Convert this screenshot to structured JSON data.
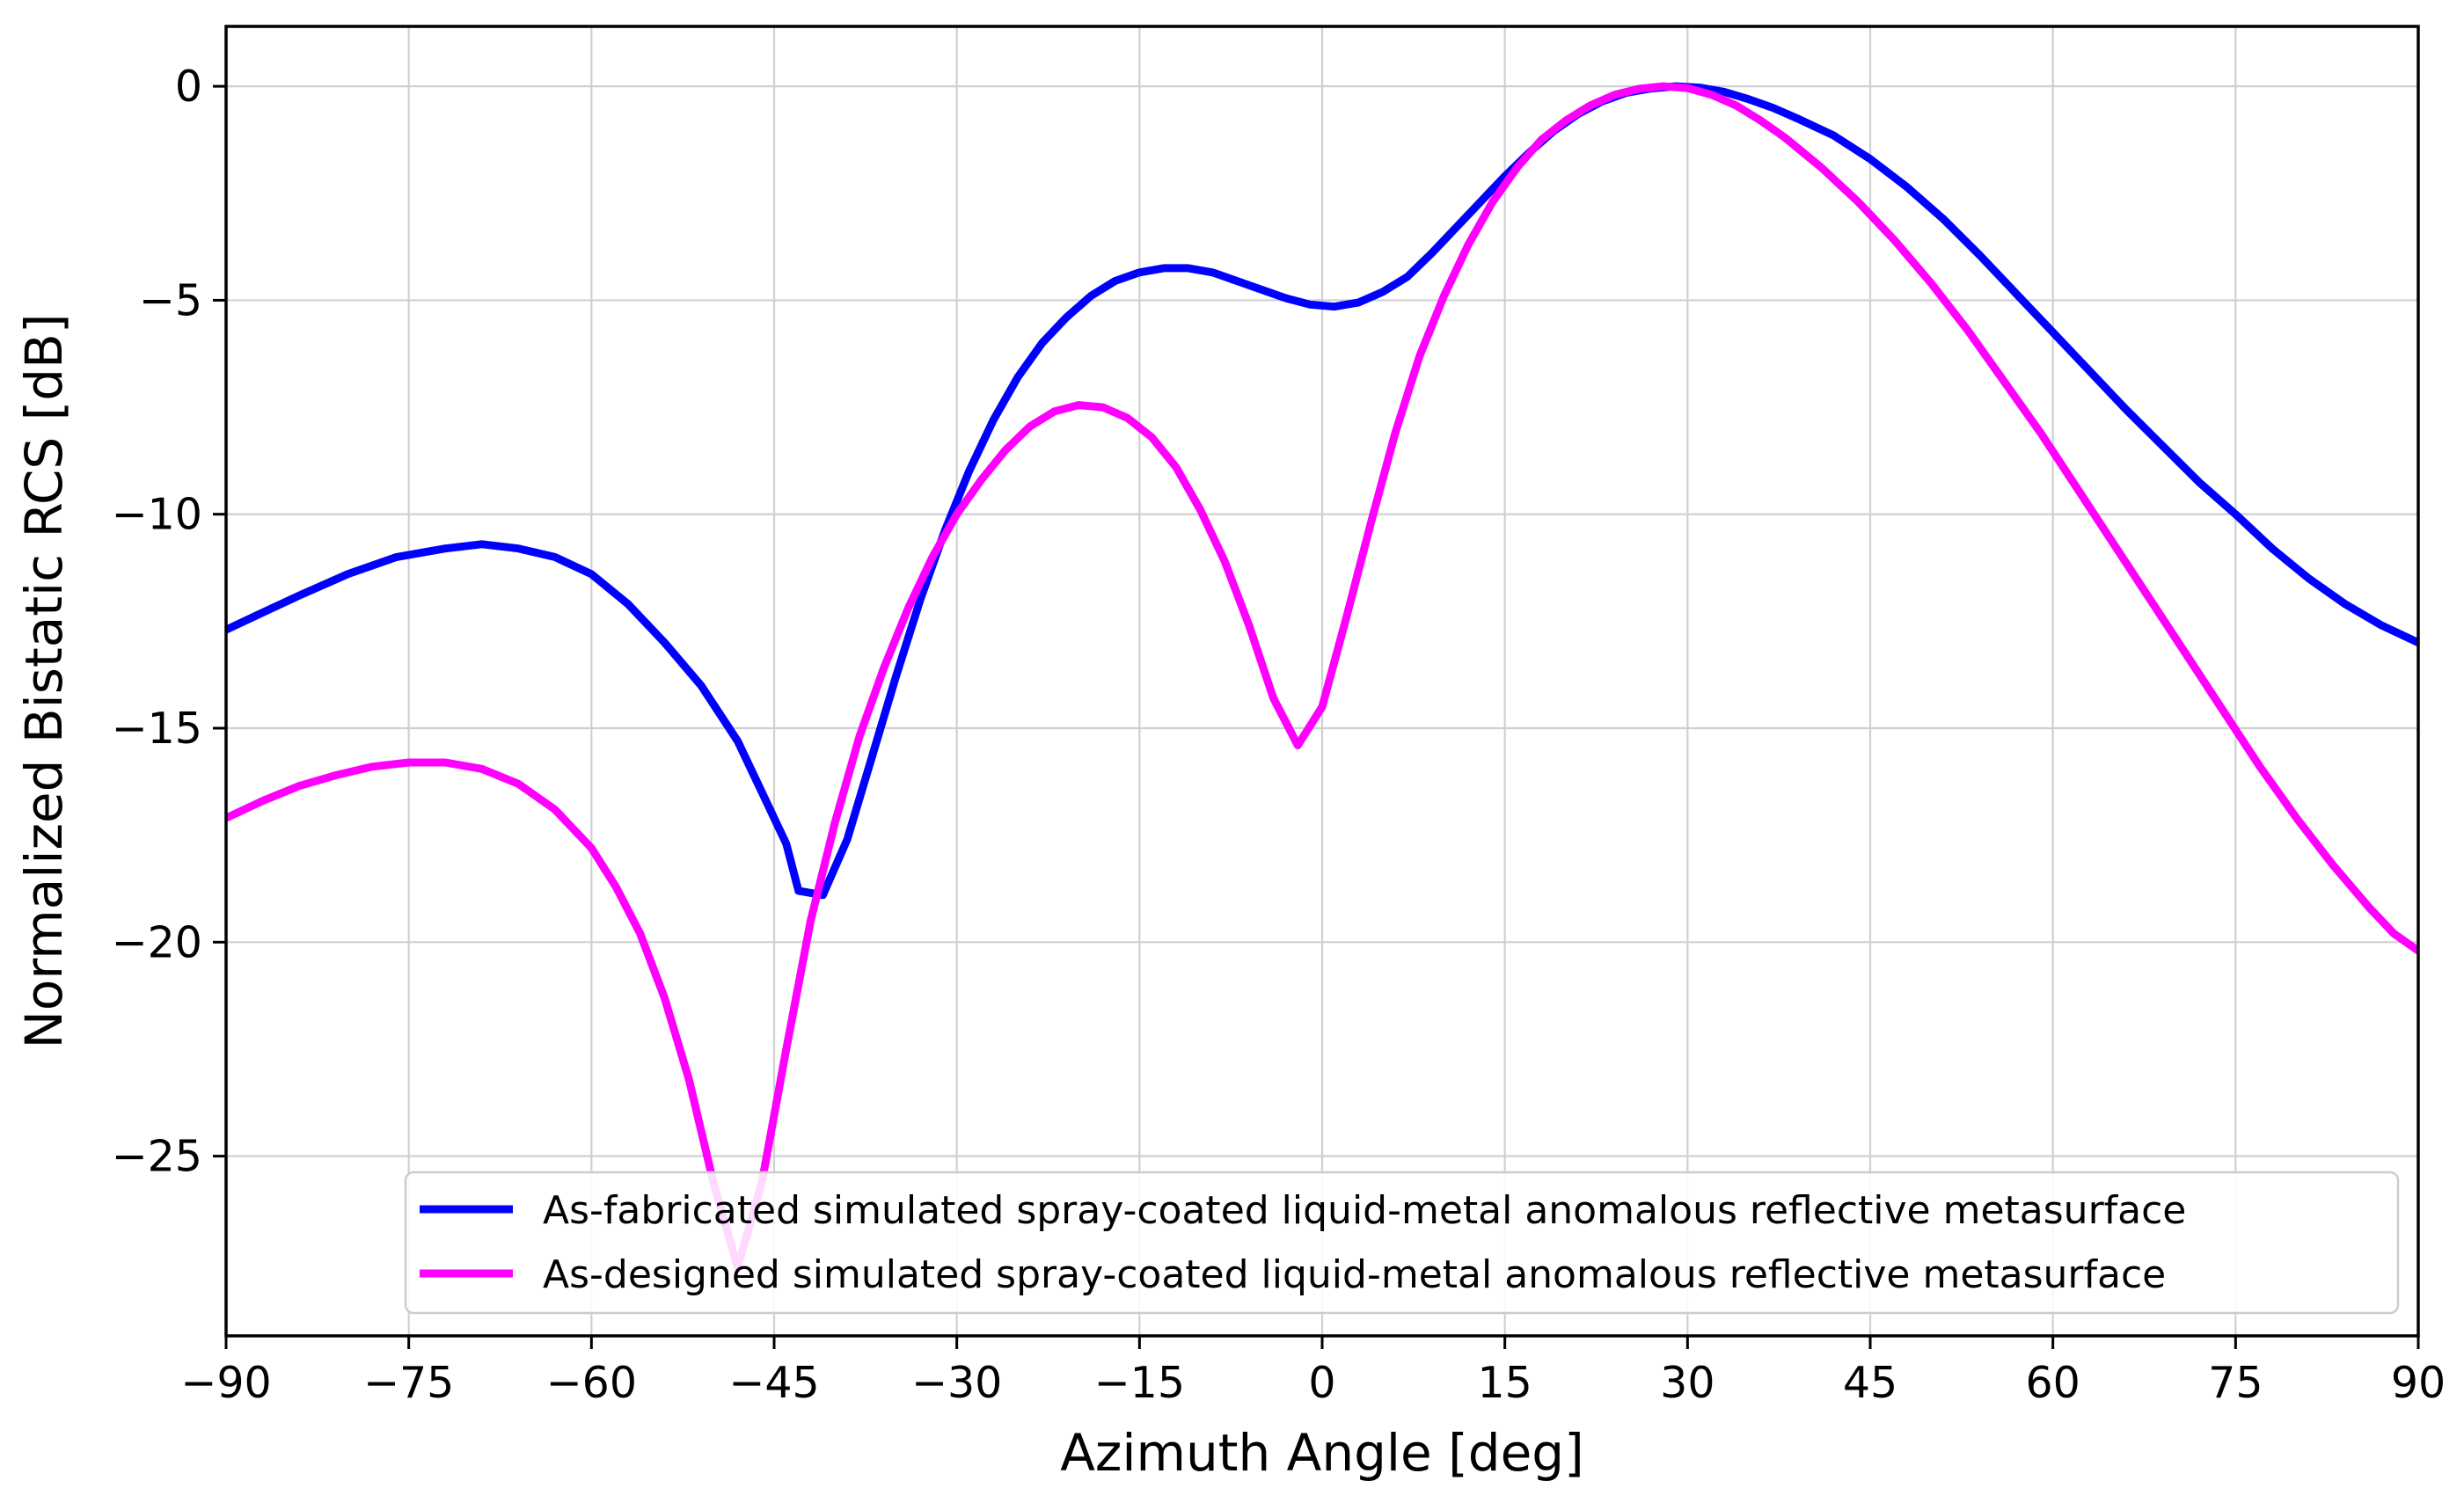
{
  "chart_data": {
    "type": "line",
    "title": "",
    "xlabel": "Azimuth Angle [deg]",
    "ylabel": "Normalized Bistatic RCS [dB]",
    "xlim": [
      -90,
      90
    ],
    "ylim": [
      -29.2,
      1.4
    ],
    "xticks": [
      -90,
      -75,
      -60,
      -45,
      -30,
      -15,
      0,
      15,
      30,
      45,
      60,
      75,
      90
    ],
    "yticks": [
      0,
      -5,
      -10,
      -15,
      -20,
      -25
    ],
    "grid": true,
    "legend_position": "lower-right",
    "series": [
      {
        "name": "As-fabricated simulated spray-coated liquid-metal anomalous reflective metasurface",
        "color": "#0000ff",
        "points": [
          [
            -90,
            -12.7
          ],
          [
            -87,
            -12.3
          ],
          [
            -84,
            -11.9
          ],
          [
            -80,
            -11.4
          ],
          [
            -76,
            -11.0
          ],
          [
            -72,
            -10.8
          ],
          [
            -69,
            -10.7
          ],
          [
            -66,
            -10.8
          ],
          [
            -63,
            -11.0
          ],
          [
            -60,
            -11.4
          ],
          [
            -57,
            -12.1
          ],
          [
            -54,
            -13.0
          ],
          [
            -51,
            -14.0
          ],
          [
            -48,
            -15.3
          ],
          [
            -46,
            -16.5
          ],
          [
            -44,
            -17.7
          ],
          [
            -43,
            -18.8
          ],
          [
            -41,
            -18.9
          ],
          [
            -39,
            -17.6
          ],
          [
            -37,
            -15.7
          ],
          [
            -35,
            -13.8
          ],
          [
            -33,
            -12.0
          ],
          [
            -31,
            -10.4
          ],
          [
            -29,
            -9.0
          ],
          [
            -27,
            -7.8
          ],
          [
            -25,
            -6.8
          ],
          [
            -23,
            -6.0
          ],
          [
            -21,
            -5.4
          ],
          [
            -19,
            -4.9
          ],
          [
            -17,
            -4.55
          ],
          [
            -15,
            -4.35
          ],
          [
            -13,
            -4.25
          ],
          [
            -11,
            -4.25
          ],
          [
            -9,
            -4.35
          ],
          [
            -7,
            -4.55
          ],
          [
            -5,
            -4.75
          ],
          [
            -3,
            -4.95
          ],
          [
            -1,
            -5.1
          ],
          [
            1,
            -5.15
          ],
          [
            3,
            -5.05
          ],
          [
            5,
            -4.8
          ],
          [
            7,
            -4.45
          ],
          [
            9,
            -3.9
          ],
          [
            11,
            -3.3
          ],
          [
            13,
            -2.7
          ],
          [
            15,
            -2.1
          ],
          [
            17,
            -1.55
          ],
          [
            19,
            -1.05
          ],
          [
            21,
            -0.65
          ],
          [
            23,
            -0.35
          ],
          [
            25,
            -0.15
          ],
          [
            27,
            -0.05
          ],
          [
            29,
            0.0
          ],
          [
            31,
            -0.03
          ],
          [
            33,
            -0.13
          ],
          [
            35,
            -0.3
          ],
          [
            37,
            -0.5
          ],
          [
            39,
            -0.75
          ],
          [
            42,
            -1.15
          ],
          [
            45,
            -1.7
          ],
          [
            48,
            -2.35
          ],
          [
            51,
            -3.1
          ],
          [
            54,
            -3.95
          ],
          [
            57,
            -4.85
          ],
          [
            60,
            -5.75
          ],
          [
            63,
            -6.65
          ],
          [
            66,
            -7.55
          ],
          [
            69,
            -8.4
          ],
          [
            72,
            -9.25
          ],
          [
            75,
            -10.0
          ],
          [
            78,
            -10.8
          ],
          [
            81,
            -11.5
          ],
          [
            84,
            -12.1
          ],
          [
            87,
            -12.6
          ],
          [
            90,
            -13.0
          ]
        ]
      },
      {
        "name": "As-designed simulated spray-coated liquid-metal anomalous reflective metasurface",
        "color": "#ff00ff",
        "points": [
          [
            -90,
            -17.1
          ],
          [
            -87,
            -16.7
          ],
          [
            -84,
            -16.35
          ],
          [
            -81,
            -16.1
          ],
          [
            -78,
            -15.9
          ],
          [
            -75,
            -15.8
          ],
          [
            -72,
            -15.8
          ],
          [
            -69,
            -15.95
          ],
          [
            -66,
            -16.3
          ],
          [
            -63,
            -16.9
          ],
          [
            -60,
            -17.8
          ],
          [
            -58,
            -18.7
          ],
          [
            -56,
            -19.8
          ],
          [
            -54,
            -21.3
          ],
          [
            -52,
            -23.2
          ],
          [
            -50,
            -25.6
          ],
          [
            -48,
            -27.6
          ],
          [
            -46,
            -25.6
          ],
          [
            -44,
            -22.5
          ],
          [
            -42,
            -19.5
          ],
          [
            -40,
            -17.2
          ],
          [
            -38,
            -15.2
          ],
          [
            -36,
            -13.6
          ],
          [
            -34,
            -12.2
          ],
          [
            -32,
            -11.0
          ],
          [
            -30,
            -10.0
          ],
          [
            -28,
            -9.2
          ],
          [
            -26,
            -8.5
          ],
          [
            -24,
            -7.95
          ],
          [
            -22,
            -7.6
          ],
          [
            -20,
            -7.45
          ],
          [
            -18,
            -7.5
          ],
          [
            -16,
            -7.75
          ],
          [
            -14,
            -8.2
          ],
          [
            -12,
            -8.9
          ],
          [
            -10,
            -9.9
          ],
          [
            -8,
            -11.1
          ],
          [
            -6,
            -12.6
          ],
          [
            -4,
            -14.3
          ],
          [
            -2,
            -15.4
          ],
          [
            0,
            -14.5
          ],
          [
            2,
            -12.4
          ],
          [
            4,
            -10.2
          ],
          [
            6,
            -8.1
          ],
          [
            8,
            -6.3
          ],
          [
            10,
            -4.9
          ],
          [
            12,
            -3.7
          ],
          [
            14,
            -2.7
          ],
          [
            16,
            -1.9
          ],
          [
            18,
            -1.25
          ],
          [
            20,
            -0.8
          ],
          [
            22,
            -0.45
          ],
          [
            24,
            -0.2
          ],
          [
            26,
            -0.06
          ],
          [
            28,
            0.0
          ],
          [
            30,
            -0.04
          ],
          [
            32,
            -0.2
          ],
          [
            34,
            -0.45
          ],
          [
            36,
            -0.8
          ],
          [
            38,
            -1.2
          ],
          [
            41,
            -1.9
          ],
          [
            44,
            -2.7
          ],
          [
            47,
            -3.6
          ],
          [
            50,
            -4.6
          ],
          [
            53,
            -5.7
          ],
          [
            56,
            -6.9
          ],
          [
            59,
            -8.1
          ],
          [
            62,
            -9.4
          ],
          [
            65,
            -10.7
          ],
          [
            68,
            -12.0
          ],
          [
            71,
            -13.3
          ],
          [
            74,
            -14.6
          ],
          [
            77,
            -15.9
          ],
          [
            80,
            -17.1
          ],
          [
            83,
            -18.2
          ],
          [
            86,
            -19.2
          ],
          [
            88,
            -19.8
          ],
          [
            90,
            -20.2
          ]
        ]
      }
    ]
  }
}
